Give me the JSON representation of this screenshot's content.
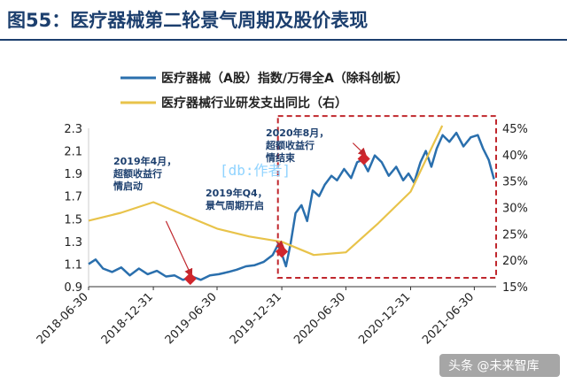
{
  "title": "图55：医疗器械第二轮景气周期及股价表现",
  "watermark": "[db:作者]",
  "credit": "头条 @未来智库",
  "chart_data": {
    "type": "line",
    "x_ticks": [
      "2018-06-30",
      "2018-12-31",
      "2019-06-30",
      "2019-12-31",
      "2020-06-30",
      "2020-12-31",
      "2021-06-30"
    ],
    "y_left_ticks": [
      "0.9",
      "1.1",
      "1.3",
      "1.5",
      "1.7",
      "1.9",
      "2.1",
      "2.3"
    ],
    "y_right_ticks": [
      "15%",
      "20%",
      "25%",
      "30%",
      "35%",
      "40%",
      "45%"
    ],
    "ylim_left": [
      0.9,
      2.3
    ],
    "ylim_right": [
      15,
      45
    ],
    "grid": false,
    "legend_position": "top",
    "series": [
      {
        "name": "医疗器械（A股）指数/万得全A（除科创板）",
        "axis": "left",
        "color": "#2a6fad",
        "points": [
          [
            "2018-06-30",
            1.1
          ],
          [
            "2018-07-20",
            1.14
          ],
          [
            "2018-08-10",
            1.06
          ],
          [
            "2018-09-05",
            1.03
          ],
          [
            "2018-10-01",
            1.07
          ],
          [
            "2018-10-25",
            1.0
          ],
          [
            "2018-11-20",
            1.06
          ],
          [
            "2018-12-15",
            1.01
          ],
          [
            "2019-01-10",
            1.04
          ],
          [
            "2019-02-05",
            0.99
          ],
          [
            "2019-03-01",
            1.0
          ],
          [
            "2019-03-25",
            0.96
          ],
          [
            "2019-04-20",
            0.99
          ],
          [
            "2019-05-15",
            0.96
          ],
          [
            "2019-06-10",
            1.0
          ],
          [
            "2019-07-05",
            1.01
          ],
          [
            "2019-08-01",
            1.03
          ],
          [
            "2019-08-25",
            1.05
          ],
          [
            "2019-09-20",
            1.08
          ],
          [
            "2019-10-15",
            1.09
          ],
          [
            "2019-11-10",
            1.12
          ],
          [
            "2019-12-05",
            1.18
          ],
          [
            "2019-12-20",
            1.27
          ],
          [
            "2020-01-01",
            1.18
          ],
          [
            "2020-01-12",
            1.08
          ],
          [
            "2020-01-25",
            1.28
          ],
          [
            "2020-02-08",
            1.55
          ],
          [
            "2020-02-25",
            1.62
          ],
          [
            "2020-03-12",
            1.48
          ],
          [
            "2020-03-28",
            1.75
          ],
          [
            "2020-04-15",
            1.7
          ],
          [
            "2020-05-01",
            1.8
          ],
          [
            "2020-05-20",
            1.88
          ],
          [
            "2020-06-05",
            1.84
          ],
          [
            "2020-06-25",
            1.94
          ],
          [
            "2020-07-15",
            1.86
          ],
          [
            "2020-08-01",
            2.0
          ],
          [
            "2020-08-15",
            2.02
          ],
          [
            "2020-09-01",
            1.92
          ],
          [
            "2020-09-20",
            2.06
          ],
          [
            "2020-10-10",
            2.0
          ],
          [
            "2020-10-30",
            1.88
          ],
          [
            "2020-11-20",
            1.96
          ],
          [
            "2020-12-10",
            1.84
          ],
          [
            "2020-12-25",
            1.9
          ],
          [
            "2021-01-10",
            1.82
          ],
          [
            "2021-01-28",
            2.0
          ],
          [
            "2021-02-12",
            2.1
          ],
          [
            "2021-02-28",
            1.96
          ],
          [
            "2021-03-15",
            2.12
          ],
          [
            "2021-04-01",
            2.24
          ],
          [
            "2021-04-20",
            2.18
          ],
          [
            "2021-05-10",
            2.26
          ],
          [
            "2021-05-30",
            2.14
          ],
          [
            "2021-06-20",
            2.22
          ],
          [
            "2021-07-10",
            2.24
          ],
          [
            "2021-07-25",
            2.12
          ],
          [
            "2021-08-10",
            2.02
          ],
          [
            "2021-08-25",
            1.85
          ]
        ]
      },
      {
        "name": "医疗器械行业研发支出同比（右）",
        "axis": "right",
        "color": "#e8c34a",
        "points": [
          [
            "2018-06-30",
            27.5
          ],
          [
            "2018-09-30",
            29.0
          ],
          [
            "2018-12-31",
            31.0
          ],
          [
            "2019-03-31",
            28.5
          ],
          [
            "2019-06-30",
            26.0
          ],
          [
            "2019-09-30",
            24.5
          ],
          [
            "2019-12-31",
            23.5
          ],
          [
            "2020-03-31",
            21.0
          ],
          [
            "2020-06-30",
            21.5
          ],
          [
            "2020-09-30",
            27.0
          ],
          [
            "2020-12-31",
            33.0
          ],
          [
            "2021-03-31",
            45.5
          ]
        ]
      }
    ],
    "annotations": [
      {
        "text": [
          "2019年4月，",
          "超额收益行",
          "情启动"
        ],
        "marker": [
          "2019-04-15",
          0.97
        ],
        "arrow_from": [
          "2019-02-05",
          1.48
        ]
      },
      {
        "text": [
          "2019年Q4，",
          "景气周期开启"
        ],
        "marker": [
          "2019-12-31",
          1.21
        ],
        "arrow_from": [
          "2019-12-15",
          1.3
        ]
      },
      {
        "text": [
          "2020年8月，",
          "超额收益行",
          "情结束"
        ],
        "marker": [
          "2020-08-20",
          2.03
        ],
        "arrow_from": [
          "2020-07-20",
          2.17
        ]
      }
    ],
    "highlight_box": {
      "x_range": [
        "2019-12-20",
        "2021-08-31"
      ],
      "y_range": [
        0.9,
        2.33
      ]
    }
  }
}
